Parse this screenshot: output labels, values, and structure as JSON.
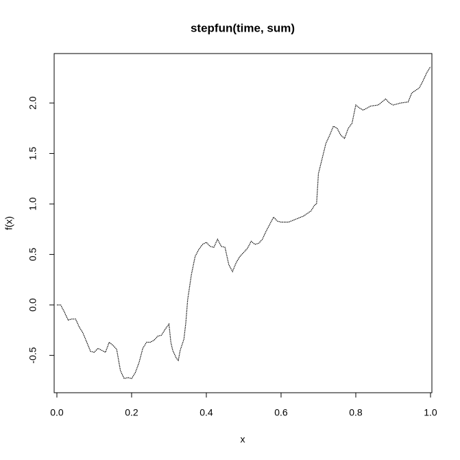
{
  "chart_data": {
    "type": "line",
    "title": "stepfun(time, sum)",
    "x_label": "x",
    "y_label": "f(x)",
    "color": "#000000",
    "x": [
      0.0,
      0.01,
      0.02,
      0.03,
      0.04,
      0.05,
      0.06,
      0.07,
      0.08,
      0.09,
      0.1,
      0.11,
      0.12,
      0.13,
      0.14,
      0.15,
      0.16,
      0.17,
      0.18,
      0.19,
      0.2,
      0.21,
      0.22,
      0.23,
      0.24,
      0.25,
      0.26,
      0.27,
      0.28,
      0.29,
      0.3,
      0.305,
      0.31,
      0.32,
      0.325,
      0.33,
      0.34,
      0.345,
      0.35,
      0.36,
      0.37,
      0.38,
      0.39,
      0.4,
      0.41,
      0.42,
      0.43,
      0.44,
      0.45,
      0.46,
      0.47,
      0.48,
      0.49,
      0.5,
      0.51,
      0.52,
      0.53,
      0.54,
      0.55,
      0.56,
      0.57,
      0.58,
      0.59,
      0.6,
      0.62,
      0.64,
      0.66,
      0.68,
      0.69,
      0.695,
      0.7,
      0.71,
      0.72,
      0.73,
      0.74,
      0.75,
      0.76,
      0.77,
      0.78,
      0.79,
      0.8,
      0.81,
      0.82,
      0.83,
      0.84,
      0.86,
      0.88,
      0.89,
      0.9,
      0.92,
      0.94,
      0.95,
      0.97,
      0.98,
      0.99,
      1.0
    ],
    "values": [
      0.0,
      0.0,
      -0.07,
      -0.15,
      -0.14,
      -0.14,
      -0.22,
      -0.28,
      -0.37,
      -0.46,
      -0.47,
      -0.43,
      -0.45,
      -0.47,
      -0.37,
      -0.4,
      -0.44,
      -0.65,
      -0.73,
      -0.72,
      -0.73,
      -0.67,
      -0.57,
      -0.43,
      -0.37,
      -0.37,
      -0.35,
      -0.31,
      -0.3,
      -0.24,
      -0.19,
      -0.37,
      -0.45,
      -0.53,
      -0.55,
      -0.45,
      -0.34,
      -0.18,
      0.05,
      0.3,
      0.48,
      0.55,
      0.6,
      0.62,
      0.58,
      0.57,
      0.65,
      0.58,
      0.57,
      0.4,
      0.33,
      0.42,
      0.48,
      0.52,
      0.56,
      0.63,
      0.6,
      0.61,
      0.65,
      0.73,
      0.8,
      0.87,
      0.83,
      0.82,
      0.82,
      0.85,
      0.88,
      0.93,
      0.99,
      1.0,
      1.3,
      1.45,
      1.6,
      1.68,
      1.77,
      1.75,
      1.68,
      1.65,
      1.75,
      1.8,
      1.98,
      1.95,
      1.93,
      1.95,
      1.97,
      1.98,
      2.04,
      2.0,
      1.98,
      2.0,
      2.01,
      2.1,
      2.15,
      2.22,
      2.3,
      2.36
    ],
    "xlim": [
      -0.0073,
      1.0037
    ],
    "ylim": [
      -0.87,
      2.49
    ],
    "xticks": [
      {
        "value": 0,
        "label": "0.0"
      },
      0.2,
      0.4,
      0.6,
      0.8,
      {
        "value": 1,
        "label": "1.0"
      }
    ],
    "yticks": [
      -0.5,
      {
        "value": 0,
        "label": "0.0"
      },
      0.5,
      {
        "value": 1,
        "label": "1.0"
      },
      1.5,
      {
        "value": 2,
        "label": "2.0"
      }
    ]
  }
}
